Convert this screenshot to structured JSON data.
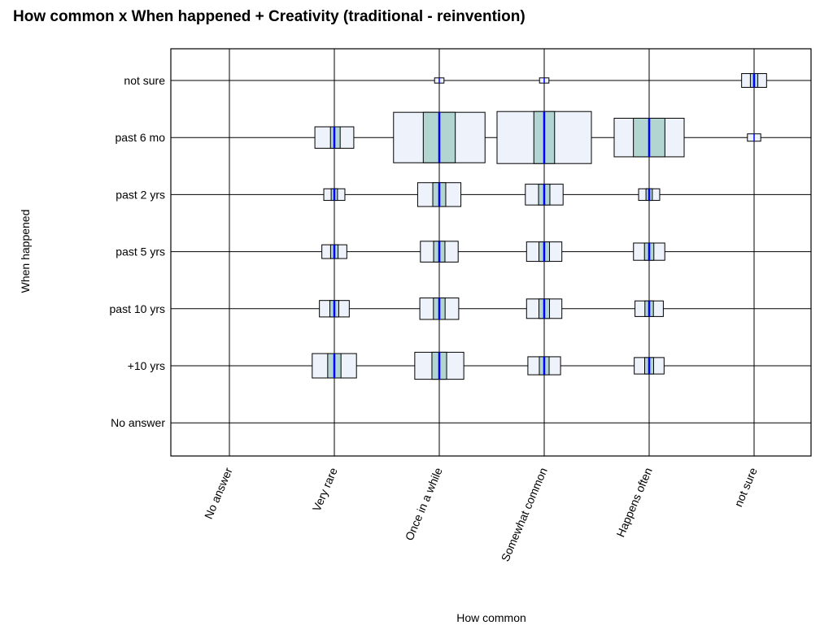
{
  "chart_data": {
    "type": "boxplot-matrix",
    "title": "How common x When happened + Creativity (traditional - reinvention)",
    "xlabel": "How common",
    "ylabel": "When happened",
    "x_categories": [
      "No answer",
      "Very rare",
      "Once in a while",
      "Somewhat common",
      "Happens often",
      "not sure"
    ],
    "y_categories": [
      "not sure",
      "past 6 mo",
      "past 2 yrs",
      "past 5 yrs",
      "past 10 yrs",
      "+10 yrs",
      "No answer"
    ],
    "cells": [
      {
        "x": "Very rare",
        "y": "past 6 mo",
        "size": 0.17,
        "median": 0.0,
        "q1": -0.2,
        "q3": 0.3
      },
      {
        "x": "Once in a while",
        "y": "past 6 mo",
        "size": 0.94,
        "median": 0.0,
        "q1": -0.35,
        "q3": 0.35
      },
      {
        "x": "Somewhat common",
        "y": "past 6 mo",
        "size": 1.0,
        "median": 0.0,
        "q1": -0.22,
        "q3": 0.22
      },
      {
        "x": "Happens often",
        "y": "past 6 mo",
        "size": 0.55,
        "median": 0.0,
        "q1": -0.45,
        "q3": 0.45
      },
      {
        "x": "not sure",
        "y": "not sure",
        "size": 0.07,
        "median": 0.0,
        "q1": -0.3,
        "q3": 0.3
      },
      {
        "x": "Once in a while",
        "y": "not sure",
        "size": 0.01,
        "median": 0.0,
        "q1": 0.0,
        "q3": 0.0
      },
      {
        "x": "Somewhat common",
        "y": "not sure",
        "size": 0.01,
        "median": 0.0,
        "q1": 0.0,
        "q3": 0.0
      },
      {
        "x": "not sure",
        "y": "past 6 mo",
        "size": 0.02,
        "median": 0.0,
        "q1": 0.0,
        "q3": 0.0
      },
      {
        "x": "Very rare",
        "y": "past 2 yrs",
        "size": 0.05,
        "median": 0.0,
        "q1": -0.3,
        "q3": 0.3
      },
      {
        "x": "Once in a while",
        "y": "past 2 yrs",
        "size": 0.21,
        "median": 0.0,
        "q1": -0.3,
        "q3": 0.3
      },
      {
        "x": "Somewhat common",
        "y": "past 2 yrs",
        "size": 0.16,
        "median": 0.0,
        "q1": -0.3,
        "q3": 0.3
      },
      {
        "x": "Happens often",
        "y": "past 2 yrs",
        "size": 0.05,
        "median": 0.0,
        "q1": -0.3,
        "q3": 0.3
      },
      {
        "x": "Very rare",
        "y": "past 5 yrs",
        "size": 0.07,
        "median": 0.0,
        "q1": -0.3,
        "q3": 0.3
      },
      {
        "x": "Once in a while",
        "y": "past 5 yrs",
        "size": 0.16,
        "median": 0.0,
        "q1": -0.3,
        "q3": 0.3
      },
      {
        "x": "Somewhat common",
        "y": "past 5 yrs",
        "size": 0.14,
        "median": 0.0,
        "q1": -0.3,
        "q3": 0.3
      },
      {
        "x": "Happens often",
        "y": "past 5 yrs",
        "size": 0.11,
        "median": 0.0,
        "q1": -0.3,
        "q3": 0.3
      },
      {
        "x": "Very rare",
        "y": "past 10 yrs",
        "size": 0.1,
        "median": 0.0,
        "q1": -0.3,
        "q3": 0.3
      },
      {
        "x": "Once in a while",
        "y": "past 10 yrs",
        "size": 0.17,
        "median": 0.0,
        "q1": -0.3,
        "q3": 0.3
      },
      {
        "x": "Somewhat common",
        "y": "past 10 yrs",
        "size": 0.14,
        "median": 0.0,
        "q1": -0.3,
        "q3": 0.3
      },
      {
        "x": "Happens often",
        "y": "past 10 yrs",
        "size": 0.09,
        "median": 0.0,
        "q1": -0.3,
        "q3": 0.3
      },
      {
        "x": "Very rare",
        "y": "+10 yrs",
        "size": 0.22,
        "median": 0.0,
        "q1": -0.3,
        "q3": 0.3
      },
      {
        "x": "Once in a while",
        "y": "+10 yrs",
        "size": 0.27,
        "median": 0.0,
        "q1": -0.3,
        "q3": 0.3
      },
      {
        "x": "Somewhat common",
        "y": "+10 yrs",
        "size": 0.12,
        "median": 0.0,
        "q1": -0.3,
        "q3": 0.3
      },
      {
        "x": "Happens often",
        "y": "+10 yrs",
        "size": 0.1,
        "median": 0.0,
        "q1": -0.3,
        "q3": 0.3
      }
    ],
    "colors": {
      "outer_fill": "#eef3fb",
      "iqr_fill": "#b2d5d2",
      "median": "#0000ff",
      "outline": "#000000"
    }
  }
}
